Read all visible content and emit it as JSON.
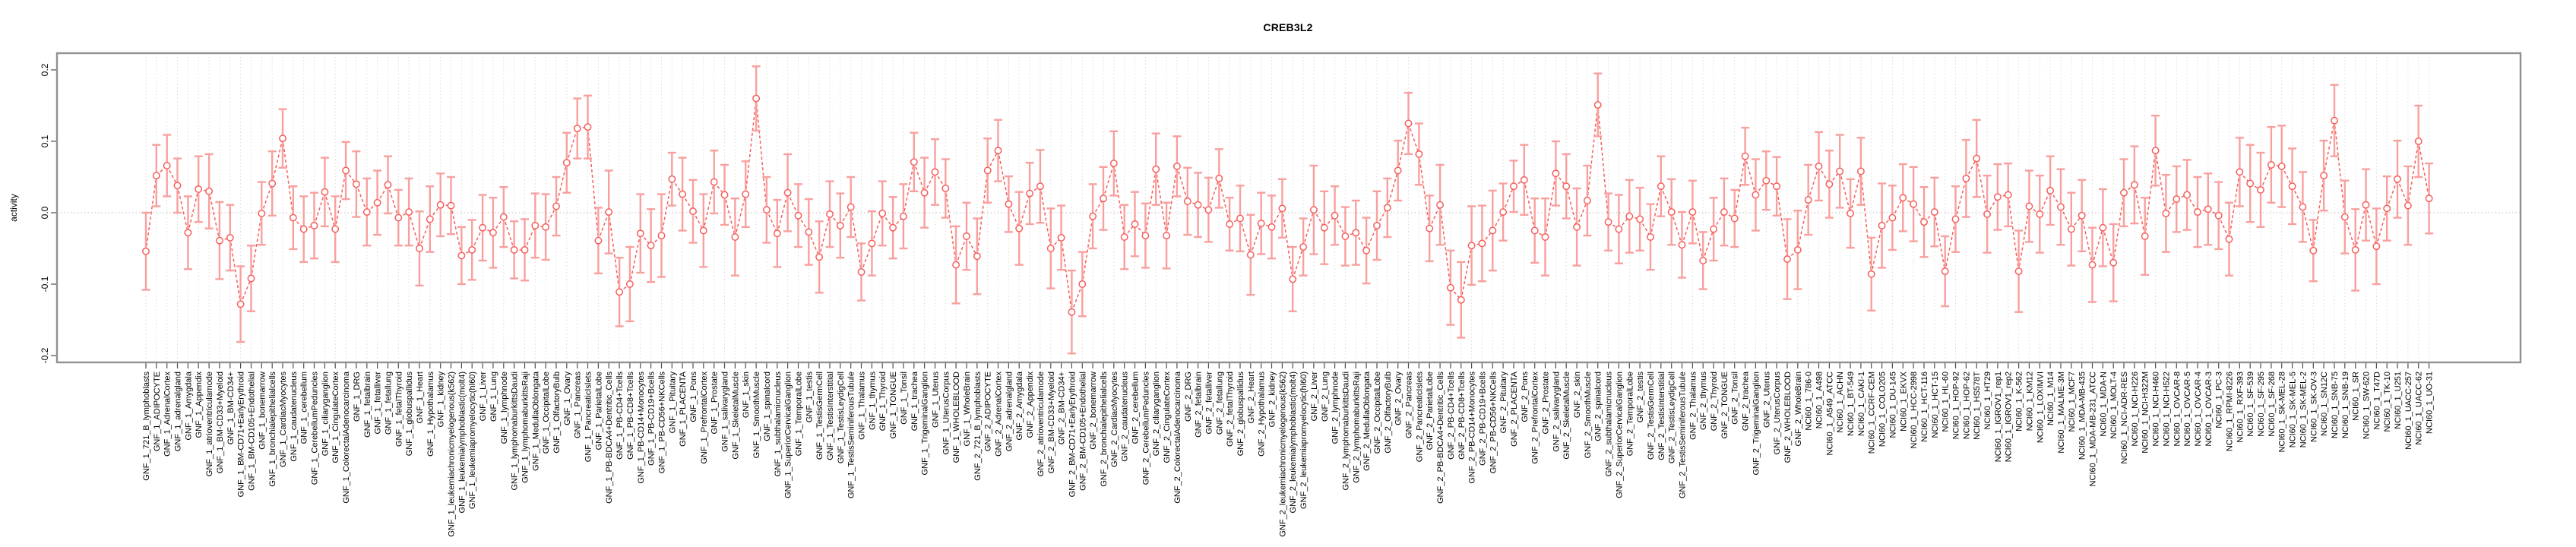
{
  "page": {
    "background": "#ffffff"
  },
  "chart_data": {
    "type": "line",
    "subtype": "points-with-errorbars",
    "title": "CREB3L2",
    "xlabel": "",
    "ylabel": "activity",
    "ylim": [
      -0.22,
      0.225
    ],
    "yticks": [
      0.2,
      0.1,
      0.0,
      -0.1,
      -0.2
    ],
    "legend_position": "none",
    "grid": {
      "vertical_per_category": true,
      "horizontal_zero_line": true
    },
    "series_color": "#f55f5c",
    "errorbar_color": "#f8a09e",
    "categories": [
      "GNF_1_721_B_lymphoblasts",
      "GNF_1_ADIPOCYTE",
      "GNF_1_AdrenalCortex",
      "GNF_1_adrenalgland",
      "GNF_1_Amygdala",
      "GNF_1_Appendix",
      "GNF_1_atrioventricularnode",
      "GNF_1_BM-CD33+Myeloid",
      "GNF_1_BM-CD34+",
      "GNF_1_BM-CD71+EarlyErythroid",
      "GNF_1_BM-CD105+Endothelial",
      "GNF_1_bonemarrow",
      "GNF_1_bronchialepithelialcells",
      "GNF_1_CardiacMyocytes",
      "GNF_1_caudatenucleus",
      "GNF_1_cerebellum",
      "GNF_1_CerebellumPeduncles",
      "GNF_1_ciliaryganglion",
      "GNF_1_CingulateCortex",
      "GNF_1_ColorectalAdenocarcinoma",
      "GNF_1_DRG",
      "GNF_1_fetalbrain",
      "GNF_1_fetalliver",
      "GNF_1_fetallung",
      "GNF_1_fetalThyroid",
      "GNF_1_globuspallidus",
      "GNF_1_Heart",
      "GNF_1_Hypothalamus",
      "GNF_1_kidney",
      "GNF_1_leukemiachronicmyelogenous(k562)",
      "GNF_1_leukemialymphoblastic(molt4)",
      "GNF_1_leukemiapromyelocytic(hl60)",
      "GNF_1_Liver",
      "GNF_1_Lung",
      "GNF_1_lymphnode",
      "GNF_1_lymphomaburkittsDaudi",
      "GNF_1_lymphomaburkittsRaji",
      "GNF_1_MedullaOblongata",
      "GNF_1_OccipitalLobe",
      "GNF_1_OlfactoryBulb",
      "GNF_1_Ovary",
      "GNF_1_Pancreas",
      "GNF_1_PancreaticIslets",
      "GNF_1_ParietalLobe",
      "GNF_1_PB-BDCA4+Dentritic_Cells",
      "GNF_1_PB-CD4+Tcells",
      "GNF_1_PB-CD8+Tcells",
      "GNF_1_PB-CD14+Monocytes",
      "GNF_1_PB-CD19+Bcells",
      "GNF_1_PB-CD56+NKCells",
      "GNF_1_Pituitary",
      "GNF_1_PLACENTA",
      "GNF_1_Pons",
      "GNF_1_PrefrontalCortex",
      "GNF_1_Prostate",
      "GNF_1_salivarygland",
      "GNF_1_SkeletalMuscle",
      "GNF_1_skin",
      "GNF_1_SmoothMuscle",
      "GNF_1_spinalcord",
      "GNF_1_subthalamicnucleus",
      "GNF_1_SuperiorCervicalGanglion",
      "GNF_1_TemporalLobe",
      "GNF_1_testis",
      "GNF_1_TestisGermCell",
      "GNF_1_TestisInterstitial",
      "GNF_1_TestisLeydigCell",
      "GNF_1_TestisSeminiferousTubule",
      "GNF_1_Thalamus",
      "GNF_1_thymus",
      "GNF_1_Thyroid",
      "GNF_1_TONGUE",
      "GNF_1_Tonsil",
      "GNF_1_trachea",
      "GNF_1_TrigeminalGanglion",
      "GNF_1_Uterus",
      "GNF_1_UterusCorpus",
      "GNF_1_WHOLEBLOOD",
      "GNF_1_WholeBrain",
      "GNF_2_721_B_lymphoblasts",
      "GNF_2_ADIPOCYTE",
      "GNF_2_AdrenalCortex",
      "GNF_2_adrenalgland",
      "GNF_2_Amygdala",
      "GNF_2_Appendix",
      "GNF_2_atrioventricularnode",
      "GNF_2_BM-CD33+Myeloid",
      "GNF_2_BM-CD34+",
      "GNF_2_BM-CD71+EarlyErythroid",
      "GNF_2_BM-CD105+Endothelial",
      "GNF_2_bonemarrow",
      "GNF_2_bronchialepithelialcells",
      "GNF_2_CardiacMyocytes",
      "GNF_2_caudatenucleus",
      "GNF_2_cerebellum",
      "GNF_2_CerebellumPeduncles",
      "GNF_2_ciliaryganglion",
      "GNF_2_CingulateCortex",
      "GNF_2_ColorectalAdenocarcinoma",
      "GNF_2_DRG",
      "GNF_2_fetalbrain",
      "GNF_2_fetalliver",
      "GNF_2_fetallung",
      "GNF_2_fetalThyroid",
      "GNF_2_globuspallidus",
      "GNF_2_Heart",
      "GNF_2_Hypothalamus",
      "GNF_2_kidney",
      "GNF_2_leukemiachronicmyelogenous(k562)",
      "GNF_2_leukemialymphoblastic(molt4)",
      "GNF_2_leukemiapromyelocytic(hl60)",
      "GNF_2_Liver",
      "GNF_2_Lung",
      "GNF_2_lymphnode",
      "GNF_2_lymphomaburkittsDaudi",
      "GNF_2_lymphomaburkittsRaji",
      "GNF_2_MedullaOblongata",
      "GNF_2_OccipitalLobe",
      "GNF_2_OlfactoryBulb",
      "GNF_2_Ovary",
      "GNF_2_Pancreas",
      "GNF_2_PancreaticIslets",
      "GNF_2_ParietalLobe",
      "GNF_2_PB-BDCA4+Dentritic_Cells",
      "GNF_2_PB-CD4+Tcells",
      "GNF_2_PB-CD8+Tcells",
      "GNF_2_PB-CD14+Monocytes",
      "GNF_2_PB-CD19+Bcells",
      "GNF_2_PB-CD56+NKCells",
      "GNF_2_Pituitary",
      "GNF_2_PLACENTA",
      "GNF_2_Pons",
      "GNF_2_PrefrontalCortex",
      "GNF_2_Prostate",
      "GNF_2_salivarygland",
      "GNF_2_SkeletalMuscle",
      "GNF_2_skin",
      "GNF_2_SmoothMuscle",
      "GNF_2_spinalcord",
      "GNF_2_subthalamicnucleus",
      "GNF_2_SuperiorCervicalGanglion",
      "GNF_2_TemporalLobe",
      "GNF_2_testis",
      "GNF_2_TestisGermCell",
      "GNF_2_TestisInterstitial",
      "GNF_2_TestisLeydigCell",
      "GNF_2_TestisSeminiferousTubule",
      "GNF_2_Thalamus",
      "GNF_2_thymus",
      "GNF_2_Thyroid",
      "GNF_2_TONGUE",
      "GNF_2_Tonsil",
      "GNF_2_trachea",
      "GNF_2_TrigeminalGanglion",
      "GNF_2_Uterus",
      "GNF_2_UterusCorpus",
      "GNF_2_WHOLEBLOOD",
      "GNF_2_WholeBrain",
      "NCI60_1_786-0",
      "NCI60_1_A498",
      "NCI60_1_A549_ATCC",
      "NCI60_1_ACHN",
      "NCI60_1_BT-549",
      "NCI60_1_CAKI-1",
      "NCI60_1_CCRF-CEM",
      "NCI60_1_COLO205",
      "NCI60_1_DU-145",
      "NCI60_1_EKVX",
      "NCI60_1_HCC-2998",
      "NCI60_1_HCT-116",
      "NCI60_1_HCT-15",
      "NCI60_1_HL-60",
      "NCI60_1_HOP-92",
      "NCI60_1_HOP-62",
      "NCI60_1_HS578T",
      "NCI60_1_HT29",
      "NCI60_1_IGROV1_rep1",
      "NCI60_1_IGROV1_rep2",
      "NCI60_1_K-562",
      "NCI60_1_KM12",
      "NCI60_1_LOXIMVI",
      "NCI60_1_M14",
      "NCI60_1_MALME-3M",
      "NCI60_1_MCF7",
      "NCI60_1_MDA-MB-435",
      "NCI60_1_MDA-MB-231_ATCC",
      "NCI60_1_MDA-N",
      "NCI60_1_MOLT-4",
      "NCI60_1_NCI-ADR-RES",
      "NCI60_1_NCI-H226",
      "NCI60_1_NCI-H322M",
      "NCI60_1_NCI-H460",
      "NCI60_1_NCI-H522",
      "NCI60_1_OVCAR-8",
      "NCI60_1_OVCAR-5",
      "NCI60_1_OVCAR-4",
      "NCI60_1_OVCAR-3",
      "NCI60_1_PC-3",
      "NCI60_1_RPMI-8226",
      "NCI60_1_RXF-393",
      "NCI60_1_SF-539",
      "NCI60_1_SF-295",
      "NCI60_1_SF-268",
      "NCI60_1_SK-MEL-28",
      "NCI60_1_SK-MEL-5",
      "NCI60_1_SK-MEL-2",
      "NCI60_1_SK-OV-3",
      "NCI60_1_SN12C",
      "NCI60_1_SNB-75",
      "NCI60_1_SNB-19",
      "NCI60_1_SR",
      "NCI60_1_SW-620",
      "NCI60_1_T47D",
      "NCI60_1_TK-10",
      "NCI60_1_U251",
      "NCI60_1_UACC-257",
      "NCI60_1_UACC-62",
      "NCI60_1_UO-31"
    ],
    "values": [
      -0.054,
      0.052,
      0.066,
      0.038,
      -0.028,
      0.033,
      0.03,
      -0.039,
      -0.035,
      -0.128,
      -0.092,
      -0.001,
      0.041,
      0.104,
      -0.007,
      -0.023,
      -0.018,
      0.029,
      -0.023,
      0.059,
      0.04,
      0.001,
      0.014,
      0.039,
      -0.007,
      0.001,
      -0.05,
      -0.009,
      0.011,
      0.01,
      -0.06,
      -0.052,
      -0.021,
      -0.028,
      -0.006,
      -0.052,
      -0.052,
      -0.018,
      -0.02,
      0.009,
      0.07,
      0.118,
      0.12,
      -0.039,
      0.001,
      -0.111,
      -0.1,
      -0.029,
      -0.046,
      -0.032,
      0.047,
      0.026,
      0.002,
      -0.025,
      0.043,
      0.025,
      -0.034,
      0.026,
      0.16,
      0.004,
      -0.029,
      0.028,
      -0.004,
      -0.027,
      -0.062,
      -0.002,
      -0.018,
      0.008,
      -0.083,
      -0.043,
      -0.001,
      -0.021,
      -0.005,
      0.071,
      0.028,
      0.057,
      0.034,
      -0.073,
      -0.033,
      -0.061,
      0.059,
      0.087,
      0.012,
      -0.022,
      0.027,
      0.037,
      -0.05,
      -0.035,
      -0.139,
      -0.1,
      -0.005,
      0.02,
      0.069,
      -0.034,
      -0.016,
      -0.032,
      0.061,
      -0.032,
      0.065,
      0.016,
      0.011,
      0.004,
      0.048,
      -0.016,
      -0.008,
      -0.059,
      -0.015,
      -0.02,
      0.006,
      -0.093,
      -0.048,
      0.004,
      -0.021,
      -0.004,
      -0.033,
      -0.028,
      -0.053,
      -0.018,
      0.007,
      0.059,
      0.125,
      0.082,
      -0.022,
      0.011,
      -0.105,
      -0.122,
      -0.046,
      -0.043,
      -0.025,
      0.001,
      0.037,
      0.046,
      -0.025,
      -0.034,
      0.055,
      0.037,
      -0.02,
      0.017,
      0.151,
      -0.013,
      -0.023,
      -0.005,
      -0.009,
      -0.034,
      0.037,
      0.001,
      -0.045,
      0.001,
      -0.067,
      -0.023,
      0.001,
      -0.008,
      0.079,
      0.025,
      0.045,
      0.037,
      -0.065,
      -0.052,
      0.018,
      0.065,
      0.04,
      0.058,
      -0.001,
      0.058,
      -0.086,
      -0.018,
      -0.007,
      0.021,
      0.012,
      -0.013,
      0.001,
      -0.082,
      -0.009,
      0.048,
      0.076,
      -0.002,
      0.022,
      0.025,
      -0.082,
      0.009,
      -0.002,
      0.031,
      0.008,
      -0.023,
      -0.004,
      -0.073,
      -0.021,
      -0.07,
      0.028,
      0.039,
      -0.033,
      0.087,
      -0.001,
      0.019,
      0.025,
      0.001,
      0.005,
      -0.004,
      -0.037,
      0.057,
      0.041,
      0.032,
      0.067,
      0.065,
      0.037,
      0.008,
      -0.053,
      0.052,
      0.129,
      -0.006,
      -0.052,
      0.011,
      -0.047,
      0.006,
      0.047,
      0.01,
      0.1,
      0.02
    ],
    "errors": [
      0.054,
      0.043,
      0.043,
      0.038,
      0.051,
      0.046,
      0.052,
      0.054,
      0.046,
      0.053,
      0.046,
      0.044,
      0.045,
      0.041,
      0.044,
      0.046,
      0.046,
      0.048,
      0.046,
      0.04,
      0.046,
      0.047,
      0.045,
      0.04,
      0.039,
      0.047,
      0.052,
      0.046,
      0.044,
      0.04,
      0.04,
      0.042,
      0.046,
      0.049,
      0.042,
      0.04,
      0.043,
      0.045,
      0.046,
      0.041,
      0.042,
      0.042,
      0.044,
      0.046,
      0.058,
      0.048,
      0.052,
      0.055,
      0.051,
      0.058,
      0.037,
      0.051,
      0.044,
      0.051,
      0.044,
      0.042,
      0.054,
      0.046,
      0.045,
      0.046,
      0.047,
      0.054,
      0.044,
      0.046,
      0.05,
      0.046,
      0.045,
      0.042,
      0.04,
      0.045,
      0.045,
      0.043,
      0.045,
      0.041,
      0.049,
      0.046,
      0.041,
      0.054,
      0.047,
      0.053,
      0.045,
      0.043,
      0.039,
      0.051,
      0.043,
      0.051,
      0.056,
      0.045,
      0.058,
      0.045,
      0.045,
      0.044,
      0.045,
      0.045,
      0.045,
      0.045,
      0.05,
      0.046,
      0.042,
      0.047,
      0.045,
      0.045,
      0.041,
      0.037,
      0.046,
      0.056,
      0.043,
      0.044,
      0.041,
      0.045,
      0.04,
      0.062,
      0.051,
      0.041,
      0.041,
      0.045,
      0.046,
      0.048,
      0.041,
      0.042,
      0.043,
      0.043,
      0.046,
      0.056,
      0.052,
      0.053,
      0.055,
      0.053,
      0.056,
      0.04,
      0.036,
      0.049,
      0.045,
      0.054,
      0.045,
      0.045,
      0.054,
      0.049,
      0.044,
      0.04,
      0.048,
      0.051,
      0.044,
      0.046,
      0.042,
      0.046,
      0.046,
      0.044,
      0.04,
      0.044,
      0.047,
      0.04,
      0.04,
      0.05,
      0.041,
      0.041,
      0.056,
      0.055,
      0.049,
      0.048,
      0.047,
      0.051,
      0.048,
      0.047,
      0.051,
      0.059,
      0.045,
      0.047,
      0.052,
      0.049,
      0.048,
      0.049,
      0.046,
      0.054,
      0.054,
      0.054,
      0.046,
      0.044,
      0.057,
      0.05,
      0.054,
      0.048,
      0.053,
      0.051,
      0.05,
      0.052,
      0.054,
      0.054,
      0.047,
      0.054,
      0.054,
      0.049,
      0.054,
      0.046,
      0.049,
      0.049,
      0.05,
      0.047,
      0.051,
      0.048,
      0.054,
      0.052,
      0.053,
      0.057,
      0.053,
      0.049,
      0.043,
      0.049,
      0.05,
      0.051,
      0.057,
      0.05,
      0.053,
      0.045,
      0.054,
      0.055,
      0.05,
      0.049
    ]
  }
}
